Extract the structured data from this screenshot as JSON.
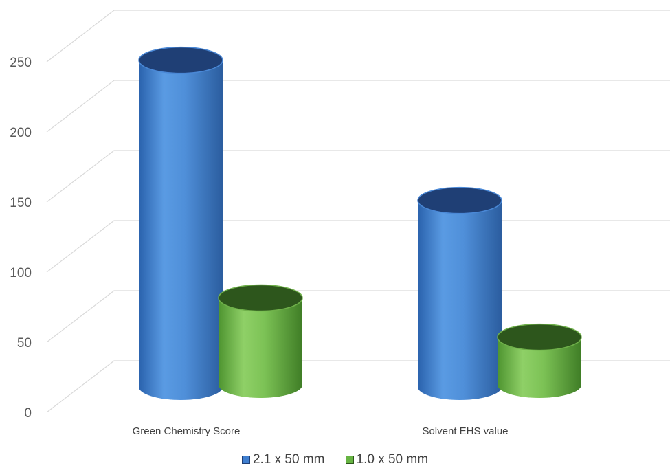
{
  "chart_data": {
    "type": "bar",
    "style": "3d-cylinder",
    "categories": [
      "Green Chemistry Score",
      "Solvent EHS value"
    ],
    "series": [
      {
        "name": "2.1 x 50 mm",
        "values": [
          233,
          133
        ],
        "color": "#3f7fd0",
        "top_color": "#1f3f75"
      },
      {
        "name": "1.0 x 50 mm",
        "values": [
          62,
          34
        ],
        "color": "#67b443",
        "top_color": "#2d561c"
      }
    ],
    "ylim": [
      0,
      250
    ],
    "yticks": [
      0,
      50,
      100,
      150,
      200,
      250
    ],
    "grid": true,
    "legend_position": "bottom",
    "title": "",
    "xlabel": "",
    "ylabel": ""
  }
}
